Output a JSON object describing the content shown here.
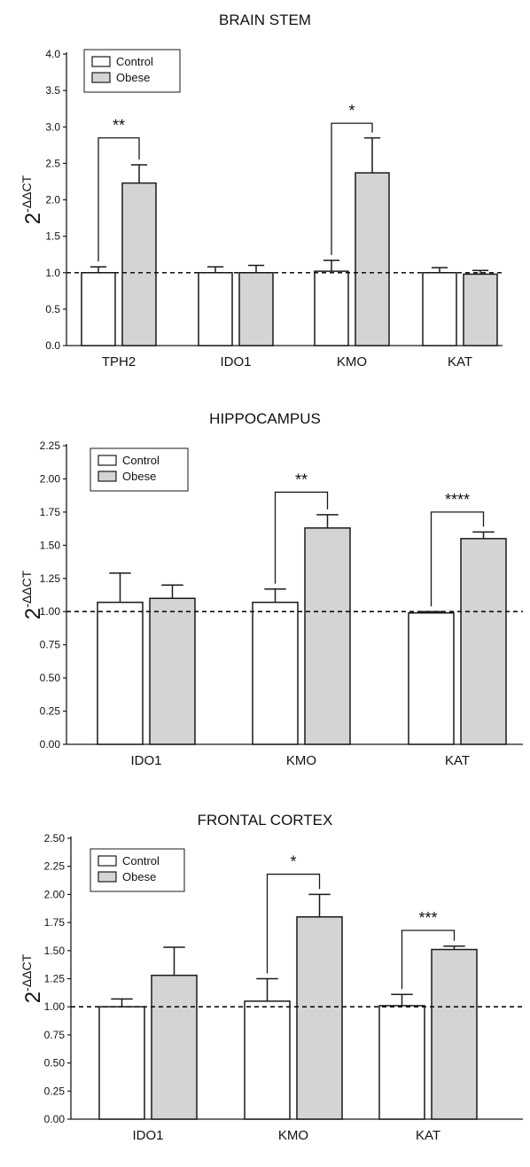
{
  "colors": {
    "control": "#ffffff",
    "obese": "#d4d4d4",
    "stroke": "#1a1a1a"
  },
  "chart_data": [
    {
      "type": "bar",
      "title": "BRAIN STEM",
      "ylabel": {
        "base": "2",
        "sup": "-ΔΔCT"
      },
      "ylim": [
        0,
        4.0
      ],
      "yticks": [
        "0.0",
        "0.5",
        "1.0",
        "1.5",
        "2.0",
        "2.5",
        "3.0",
        "3.5",
        "4.0"
      ],
      "reference_line": 1.0,
      "legend": "top-left",
      "categories": [
        "TPH2",
        "IDO1",
        "KMO",
        "KAT"
      ],
      "series": [
        {
          "name": "Control",
          "values": [
            1.0,
            1.0,
            1.02,
            1.0
          ],
          "errors": [
            0.08,
            0.08,
            0.15,
            0.07
          ]
        },
        {
          "name": "Obese",
          "values": [
            2.23,
            1.0,
            2.37,
            0.98
          ],
          "errors": [
            0.25,
            0.1,
            0.48,
            0.05
          ]
        }
      ],
      "significance": [
        {
          "category": 0,
          "label": "**",
          "y": 2.85
        },
        {
          "category": 2,
          "label": "*",
          "y": 3.05
        }
      ]
    },
    {
      "type": "bar",
      "title": "HIPPOCAMPUS",
      "ylabel": {
        "base": "2",
        "sup": "-ΔΔCT"
      },
      "ylim": [
        0,
        2.25
      ],
      "yticks": [
        "0.00",
        "0.25",
        "0.50",
        "0.75",
        "1.00",
        "1.25",
        "1.50",
        "1.75",
        "2.00",
        "2.25"
      ],
      "reference_line": 1.0,
      "legend": "top-left",
      "categories": [
        "IDO1",
        "KMO",
        "KAT"
      ],
      "series": [
        {
          "name": "Control",
          "values": [
            1.07,
            1.07,
            0.99
          ],
          "errors": [
            0.22,
            0.1,
            0.01
          ]
        },
        {
          "name": "Obese",
          "values": [
            1.1,
            1.63,
            1.55
          ],
          "errors": [
            0.1,
            0.1,
            0.05
          ]
        }
      ],
      "significance": [
        {
          "category": 1,
          "label": "**",
          "y": 1.9
        },
        {
          "category": 2,
          "label": "****",
          "y": 1.75
        }
      ]
    },
    {
      "type": "bar",
      "title": "FRONTAL CORTEX",
      "ylabel": {
        "base": "2",
        "sup": "-ΔΔCT"
      },
      "ylim": [
        0,
        2.5
      ],
      "yticks": [
        "0.00",
        "0.25",
        "0.50",
        "0.75",
        "1.00",
        "1.25",
        "1.50",
        "1.75",
        "2.00",
        "2.25",
        "2.50"
      ],
      "reference_line": 1.0,
      "legend": "top-left",
      "categories": [
        "IDO1",
        "KMO",
        "KAT"
      ],
      "series": [
        {
          "name": "Control",
          "values": [
            1.0,
            1.05,
            1.01
          ],
          "errors": [
            0.07,
            0.2,
            0.1
          ]
        },
        {
          "name": "Obese",
          "values": [
            1.28,
            1.8,
            1.51
          ],
          "errors": [
            0.25,
            0.2,
            0.03
          ]
        }
      ],
      "significance": [
        {
          "category": 1,
          "label": "*",
          "y": 2.18
        },
        {
          "category": 2,
          "label": "***",
          "y": 1.68
        }
      ]
    }
  ]
}
